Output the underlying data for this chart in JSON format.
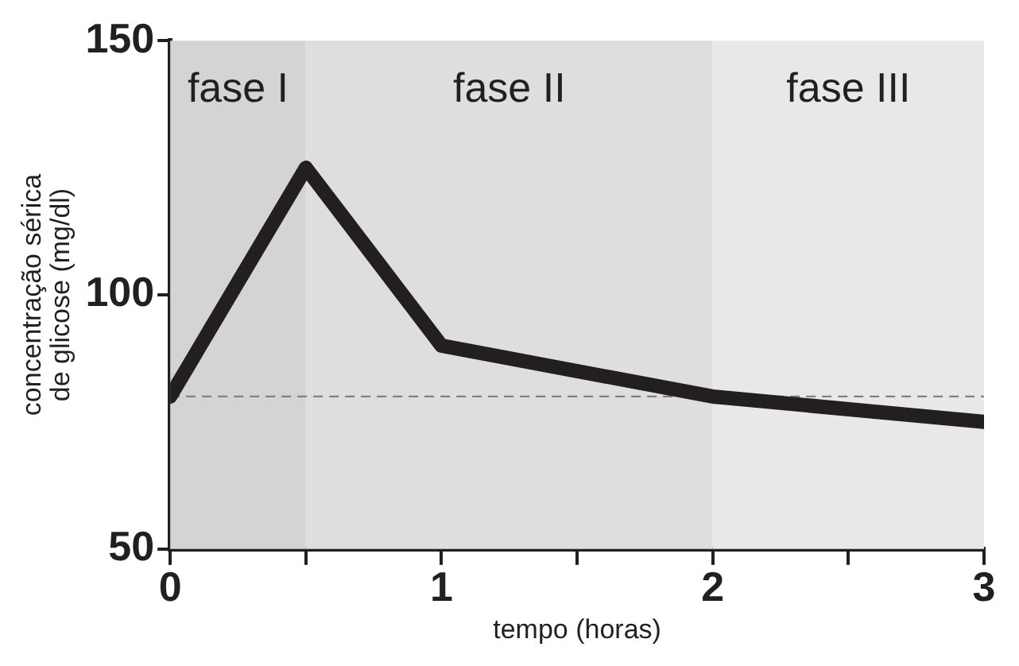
{
  "chart_data": {
    "type": "line",
    "xlabel": "tempo (horas)",
    "ylabel": "concentração sérica de glicose (mg/dl)",
    "x": [
      0,
      0.5,
      1,
      2,
      3
    ],
    "series": [
      {
        "color": "#231f20",
        "values": [
          80,
          125,
          90,
          80,
          75
        ]
      }
    ],
    "xlim": [
      0,
      3
    ],
    "xticks": [
      0,
      {
        "value": 0.5,
        "label": null
      },
      1,
      {
        "value": 1.5,
        "label": null
      },
      2,
      {
        "value": 2.5,
        "label": null
      },
      3
    ],
    "ylim": [
      50,
      150
    ],
    "yticks": [
      50,
      100,
      150
    ],
    "bands": [
      {
        "axis": "x",
        "from": 0,
        "to": 0.5,
        "label": "fase I",
        "color": "#d4d4d4"
      },
      {
        "axis": "x",
        "from": 0.5,
        "to": 2,
        "label": "fase II",
        "color": "#dedede"
      },
      {
        "axis": "x",
        "from": 2,
        "to": 3,
        "label": "fase III",
        "color": "#e8e8e8"
      }
    ],
    "ref_lines": [
      {
        "axis": "y",
        "value": 80,
        "color": "#808080",
        "line_style": "dashed"
      }
    ],
    "grid": false,
    "legend": false,
    "marker": "none",
    "line_style": "solid"
  }
}
